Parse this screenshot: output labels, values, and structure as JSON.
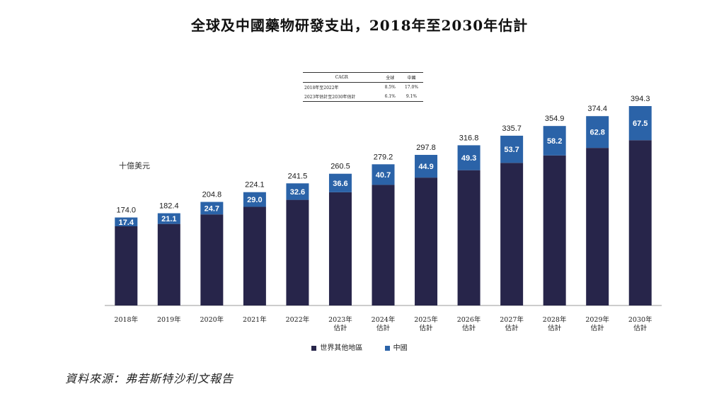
{
  "title": "全球及中國藥物研發支出，2018年至2030年估計",
  "unit_label": "十億美元",
  "cagr_table": {
    "headers": [
      "CAGR",
      "全球",
      "中國"
    ],
    "rows": [
      [
        "2018年至2022年",
        "8.5%",
        "17.0%"
      ],
      [
        "2023年估計至2030年估計",
        "6.1%",
        "9.1%"
      ]
    ]
  },
  "legend": [
    {
      "label": "世界其他地區",
      "color": "#27254a"
    },
    {
      "label": "中國",
      "color": "#2b63a8"
    }
  ],
  "source": "資料來源：弗若斯特沙利文報告",
  "chart_data": {
    "type": "bar",
    "stacked": true,
    "categories": [
      [
        "2018年"
      ],
      [
        "2019年"
      ],
      [
        "2020年"
      ],
      [
        "2021年"
      ],
      [
        "2022年"
      ],
      [
        "2023年",
        "估計"
      ],
      [
        "2024年",
        "估計"
      ],
      [
        "2025年",
        "估計"
      ],
      [
        "2026年",
        "估計"
      ],
      [
        "2027年",
        "估計"
      ],
      [
        "2028年",
        "估計"
      ],
      [
        "2029年",
        "估計"
      ],
      [
        "2030年",
        "估計"
      ]
    ],
    "series": [
      {
        "name": "世界其他地區",
        "color": "#27254a",
        "values": [
          156.6,
          161.3,
          180.1,
          195.1,
          208.9,
          223.9,
          238.5,
          252.9,
          267.5,
          282.0,
          296.7,
          311.6,
          326.8
        ]
      },
      {
        "name": "中國",
        "color": "#2b63a8",
        "values": [
          17.4,
          21.1,
          24.7,
          29.0,
          32.6,
          36.6,
          40.7,
          44.9,
          49.3,
          53.7,
          58.2,
          62.8,
          67.5
        ]
      }
    ],
    "series_labels": [
      [],
      [
        "17.4",
        "21.1",
        "24.7",
        "29.0",
        "32.6",
        "36.6",
        "40.7",
        "44.9",
        "49.3",
        "53.7",
        "58.2",
        "62.8",
        "67.5"
      ]
    ],
    "totals": [
      "174.0",
      "182.4",
      "204.8",
      "224.1",
      "241.5",
      "260.5",
      "279.2",
      "297.8",
      "316.8",
      "335.7",
      "354.9",
      "374.4",
      "394.3"
    ],
    "ylim": [
      0,
      394.3
    ],
    "grid": false,
    "legend_position": "bottom"
  }
}
